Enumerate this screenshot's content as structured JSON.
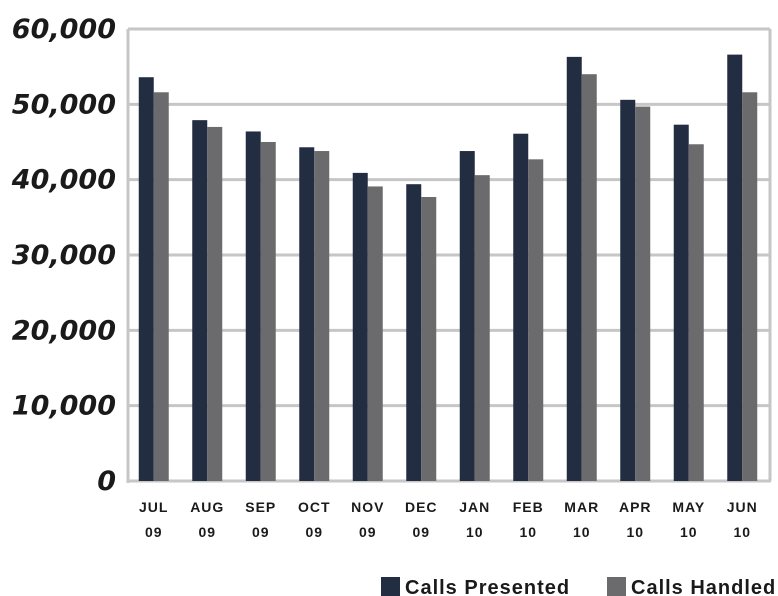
{
  "chart_data": {
    "type": "bar",
    "categories": [
      [
        "JUL",
        "09"
      ],
      [
        "AUG",
        "09"
      ],
      [
        "SEP",
        "09"
      ],
      [
        "OCT",
        "09"
      ],
      [
        "NOV",
        "09"
      ],
      [
        "DEC",
        "09"
      ],
      [
        "JAN",
        "10"
      ],
      [
        "FEB",
        "10"
      ],
      [
        "MAR",
        "10"
      ],
      [
        "APR",
        "10"
      ],
      [
        "MAY",
        "10"
      ],
      [
        "JUN",
        "10"
      ]
    ],
    "series": [
      {
        "name": "Calls Presented",
        "color": "#232d42",
        "values": [
          53600,
          47900,
          46400,
          44300,
          40900,
          39400,
          43800,
          46100,
          56300,
          50600,
          47300,
          56600
        ]
      },
      {
        "name": "Calls Handled",
        "color": "#6b6b6d",
        "values": [
          51600,
          47000,
          45000,
          43800,
          39100,
          37700,
          40600,
          42700,
          54000,
          49700,
          44700,
          51600
        ]
      }
    ],
    "ylim": [
      0,
      60000
    ],
    "yticks": [
      0,
      10000,
      20000,
      30000,
      40000,
      50000,
      60000
    ],
    "ytick_labels": [
      "0",
      "10,000",
      "20,000",
      "30,000",
      "40,000",
      "50,000",
      "60,000"
    ],
    "grid": true,
    "legend": "bottom-right",
    "title": "",
    "xlabel": "",
    "ylabel": ""
  }
}
